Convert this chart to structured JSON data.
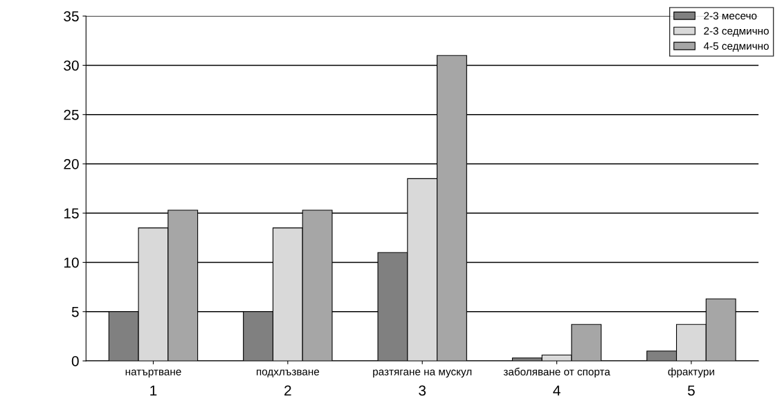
{
  "chart_data": {
    "type": "bar",
    "categories": [
      "натъртване",
      "подхлъзване",
      "разтягане на мускул",
      "заболяване от спорта",
      "фрактури"
    ],
    "series": [
      {
        "name": "2-3 месечо",
        "color": "#808080",
        "values": [
          5,
          5,
          11,
          0.3,
          1
        ]
      },
      {
        "name": "2-3 седмично",
        "color": "#d9d9d9",
        "values": [
          13.5,
          13.5,
          18.5,
          0.6,
          3.7
        ]
      },
      {
        "name": "4-5 седмично",
        "color": "#a6a6a6",
        "values": [
          15.3,
          15.3,
          31,
          3.7,
          6.3
        ]
      }
    ],
    "annotations": [
      "1",
      "2",
      "3",
      "4",
      "5"
    ],
    "ylim": [
      0,
      35
    ],
    "yticks": [
      0,
      5,
      10,
      15,
      20,
      25,
      30,
      35
    ],
    "grid": "y",
    "legend": "top right"
  }
}
